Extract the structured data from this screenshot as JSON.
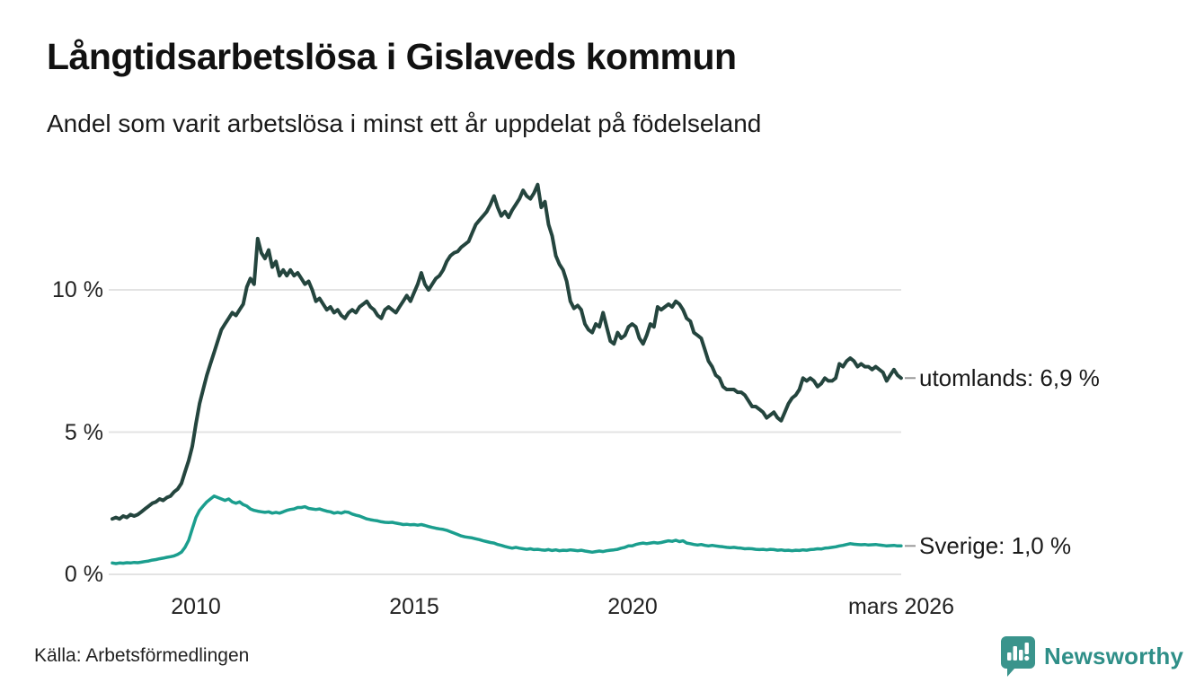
{
  "header": {
    "title": "Långtidsarbetslösa i Gislaveds kommun",
    "subtitle": "Andel som varit arbetslösa i minst ett år uppdelat på födelseland"
  },
  "footer": {
    "source": "Källa: Arbetsförmedlingen",
    "brand": "Newsworthy"
  },
  "colors": {
    "utomlands_line": "#24453e",
    "sverige_line": "#1b9e8e",
    "grid": "#e3e3e3",
    "axis_text": "#222222",
    "connector_dash": "#999999",
    "brand_teal": "#3a948c"
  },
  "chart_data": {
    "type": "line",
    "title": "Långtidsarbetslösa i Gislaveds kommun",
    "subtitle": "Andel som varit arbetslösa i minst ett år uppdelat på födelseland",
    "x_unit": "decimal_year_monthly",
    "xlim": [
      2008.0833,
      2026.25
    ],
    "ylim": [
      0,
      14.5
    ],
    "grid": "horizontal",
    "legend_position": "line-end-labels-right",
    "x_start": 2008.0833,
    "x_step": 0.083333,
    "x_ticks": [
      {
        "x": 2010,
        "label": "2010"
      },
      {
        "x": 2015,
        "label": "2015"
      },
      {
        "x": 2020,
        "label": "2020"
      },
      {
        "x": 2026.1667,
        "label": "mars 2026"
      }
    ],
    "y_ticks": [
      {
        "y": 0,
        "label": "0 %"
      },
      {
        "y": 5,
        "label": "5 %"
      },
      {
        "y": 10,
        "label": "10 %"
      }
    ],
    "series": [
      {
        "name": "utomlands",
        "label": "utomlands: 6,9 %",
        "end_value": 6.9,
        "color": "#24453e",
        "values": [
          1.95,
          2.0,
          1.95,
          2.05,
          2.0,
          2.1,
          2.05,
          2.1,
          2.2,
          2.3,
          2.4,
          2.5,
          2.55,
          2.65,
          2.6,
          2.7,
          2.75,
          2.9,
          3.0,
          3.2,
          3.6,
          4.0,
          4.5,
          5.3,
          6.0,
          6.5,
          7.0,
          7.4,
          7.8,
          8.2,
          8.6,
          8.8,
          9.0,
          9.2,
          9.1,
          9.3,
          9.5,
          10.1,
          10.4,
          10.2,
          11.8,
          11.3,
          11.1,
          11.4,
          10.8,
          11.0,
          10.5,
          10.7,
          10.5,
          10.7,
          10.5,
          10.6,
          10.4,
          10.2,
          10.3,
          10.0,
          9.6,
          9.7,
          9.5,
          9.3,
          9.4,
          9.2,
          9.3,
          9.1,
          9.0,
          9.2,
          9.3,
          9.2,
          9.4,
          9.5,
          9.6,
          9.4,
          9.3,
          9.1,
          9.0,
          9.3,
          9.4,
          9.3,
          9.2,
          9.4,
          9.6,
          9.8,
          9.6,
          9.9,
          10.2,
          10.6,
          10.2,
          10.0,
          10.2,
          10.4,
          10.5,
          10.7,
          11.0,
          11.2,
          11.3,
          11.35,
          11.5,
          11.6,
          11.7,
          12.0,
          12.3,
          12.45,
          12.6,
          12.75,
          13.0,
          13.3,
          12.9,
          12.6,
          12.75,
          12.55,
          12.8,
          13.0,
          13.2,
          13.5,
          13.3,
          13.2,
          13.4,
          13.7,
          12.9,
          13.1,
          12.3,
          11.9,
          11.2,
          10.9,
          10.7,
          10.3,
          9.6,
          9.35,
          9.45,
          9.3,
          8.8,
          8.6,
          8.5,
          8.8,
          8.7,
          9.2,
          8.7,
          8.2,
          8.1,
          8.5,
          8.3,
          8.4,
          8.7,
          8.8,
          8.7,
          8.3,
          8.1,
          8.4,
          8.8,
          8.7,
          9.4,
          9.3,
          9.4,
          9.5,
          9.4,
          9.6,
          9.5,
          9.3,
          9.0,
          8.9,
          8.5,
          8.4,
          8.3,
          7.9,
          7.5,
          7.3,
          7.0,
          6.9,
          6.6,
          6.5,
          6.5,
          6.5,
          6.4,
          6.4,
          6.3,
          6.1,
          5.9,
          5.9,
          5.8,
          5.7,
          5.5,
          5.6,
          5.7,
          5.5,
          5.4,
          5.7,
          6.0,
          6.2,
          6.3,
          6.5,
          6.9,
          6.8,
          6.9,
          6.8,
          6.6,
          6.7,
          6.9,
          6.8,
          6.8,
          6.9,
          7.4,
          7.3,
          7.5,
          7.6,
          7.5,
          7.3,
          7.4,
          7.3,
          7.3,
          7.2,
          7.3,
          7.2,
          7.1,
          6.8,
          7.0,
          7.2,
          7.0,
          6.9
        ]
      },
      {
        "name": "sverige",
        "label": "Sverige: 1,0 %",
        "end_value": 1.0,
        "color": "#1b9e8e",
        "values": [
          0.4,
          0.38,
          0.4,
          0.39,
          0.41,
          0.4,
          0.42,
          0.41,
          0.43,
          0.45,
          0.47,
          0.5,
          0.52,
          0.55,
          0.57,
          0.6,
          0.62,
          0.65,
          0.7,
          0.78,
          0.95,
          1.2,
          1.6,
          2.0,
          2.25,
          2.4,
          2.55,
          2.65,
          2.75,
          2.7,
          2.65,
          2.6,
          2.65,
          2.55,
          2.5,
          2.55,
          2.45,
          2.4,
          2.3,
          2.25,
          2.22,
          2.2,
          2.18,
          2.2,
          2.15,
          2.18,
          2.15,
          2.2,
          2.25,
          2.28,
          2.3,
          2.35,
          2.35,
          2.38,
          2.32,
          2.3,
          2.28,
          2.3,
          2.26,
          2.22,
          2.2,
          2.15,
          2.18,
          2.15,
          2.2,
          2.18,
          2.12,
          2.08,
          2.05,
          2.0,
          1.95,
          1.92,
          1.9,
          1.88,
          1.85,
          1.83,
          1.82,
          1.83,
          1.8,
          1.78,
          1.75,
          1.76,
          1.74,
          1.75,
          1.73,
          1.75,
          1.72,
          1.68,
          1.65,
          1.62,
          1.6,
          1.58,
          1.55,
          1.5,
          1.45,
          1.4,
          1.35,
          1.32,
          1.3,
          1.28,
          1.25,
          1.22,
          1.18,
          1.15,
          1.12,
          1.1,
          1.05,
          1.02,
          0.98,
          0.95,
          0.92,
          0.95,
          0.92,
          0.9,
          0.88,
          0.9,
          0.87,
          0.88,
          0.86,
          0.85,
          0.87,
          0.84,
          0.86,
          0.83,
          0.85,
          0.84,
          0.86,
          0.85,
          0.83,
          0.85,
          0.82,
          0.8,
          0.78,
          0.8,
          0.82,
          0.8,
          0.83,
          0.85,
          0.86,
          0.88,
          0.92,
          0.95,
          1.0,
          1.0,
          1.05,
          1.08,
          1.1,
          1.08,
          1.1,
          1.12,
          1.1,
          1.12,
          1.15,
          1.18,
          1.16,
          1.2,
          1.15,
          1.18,
          1.1,
          1.08,
          1.05,
          1.03,
          1.05,
          1.02,
          1.0,
          1.02,
          1.0,
          0.98,
          0.97,
          0.95,
          0.94,
          0.95,
          0.93,
          0.92,
          0.9,
          0.91,
          0.9,
          0.88,
          0.87,
          0.88,
          0.86,
          0.88,
          0.87,
          0.85,
          0.86,
          0.84,
          0.85,
          0.83,
          0.85,
          0.84,
          0.86,
          0.85,
          0.87,
          0.88,
          0.9,
          0.89,
          0.92,
          0.93,
          0.95,
          0.97,
          1.0,
          1.02,
          1.05,
          1.08,
          1.06,
          1.05,
          1.04,
          1.05,
          1.03,
          1.04,
          1.05,
          1.03,
          1.02,
          1.0,
          1.01,
          1.02,
          1.0,
          1.0
        ]
      }
    ]
  }
}
